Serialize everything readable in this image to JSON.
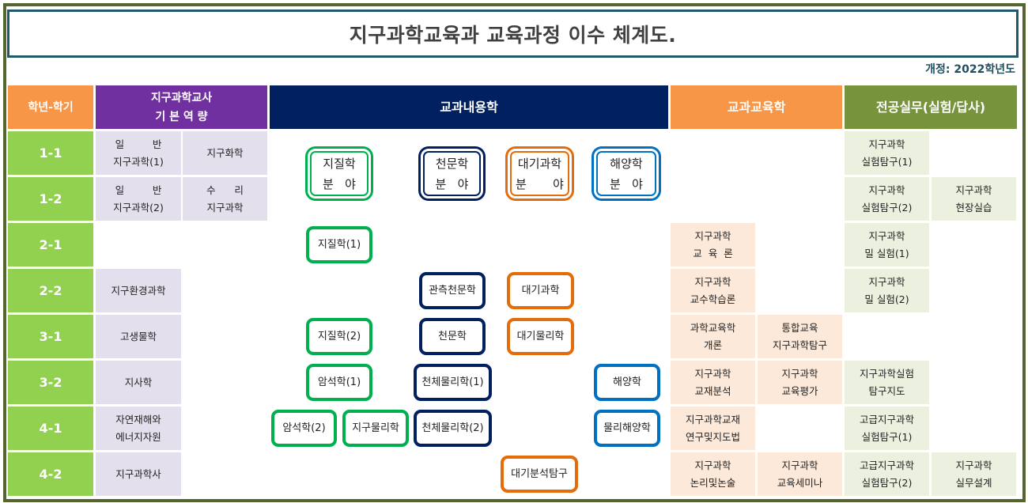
{
  "title": "지구과학교육과 교육과정 이수 체계도.",
  "revision": "개정: 2022학년도",
  "colors": {
    "frame": "#55652f",
    "title_border": "#215967",
    "header_grade": "#f79646",
    "header_basic": "#7030a0",
    "header_content": "#002060",
    "header_edu": "#f79646",
    "header_practice": "#77933c",
    "grade_cell": "#92d050",
    "basic_cell": "#e4dfec",
    "edu_cell": "#fde9d9",
    "practice_cell": "#ebf1de",
    "geology": "#00b050",
    "astronomy": "#002060",
    "atmosphere": "#e46c0a",
    "ocean": "#0070c0"
  },
  "headers": {
    "grade": "학년-학기",
    "basic": "지구과학교사\n기 본 역 량",
    "content": "교과내용학",
    "edu": "교과교육학",
    "practice": "전공실무(실험/답사)"
  },
  "grades": [
    "1-1",
    "1-2",
    "2-1",
    "2-2",
    "3-1",
    "3-2",
    "4-1",
    "4-2"
  ],
  "basic": [
    "일         반\n지구과학(1)",
    "지구화학",
    "일         반\n지구과학(2)",
    "수      리\n지구과학",
    "지구환경과학",
    "고생물학",
    "지사학",
    "자연재해와\n에너지자원",
    "지구과학사"
  ],
  "fields": [
    "지질학\n분   야",
    "천문학\n분   야",
    "대기과학\n분       야",
    "해양학\n분   야"
  ],
  "courses": {
    "geology": [
      "지질학(1)",
      "지질학(2)",
      "암석학(1)",
      "암석학(2)",
      "지구물리학"
    ],
    "astronomy": [
      "관측천문학",
      "천문학",
      "천체물리학(1)",
      "천체물리학(2)"
    ],
    "atmosphere": [
      "대기과학",
      "대기물리학",
      "대기분석탐구"
    ],
    "ocean": [
      "해양학",
      "물리해양학"
    ]
  },
  "edu": [
    "지구과학\n교  육  론",
    "지구과학\n교수학습론",
    "과학교육학\n개론",
    "통합교육\n지구과학탐구",
    "지구과학\n교재분석",
    "지구과학\n교육평가",
    "지구과학교재\n연구및지도법",
    "지구과학\n논리및논술",
    "지구과학\n교육세미나"
  ],
  "practice": [
    "지구과학\n실험탐구(1)",
    "지구과학\n실험탐구(2)",
    "지구과학\n현장실습",
    "지구과학\n밀 실험(1)",
    "지구과학\n밀 실험(2)",
    "지구과학실험\n탐구지도",
    "고급지구과학\n실험탐구(1)",
    "고급지구과학\n실험탐구(2)",
    "지구과학\n실무설계"
  ]
}
